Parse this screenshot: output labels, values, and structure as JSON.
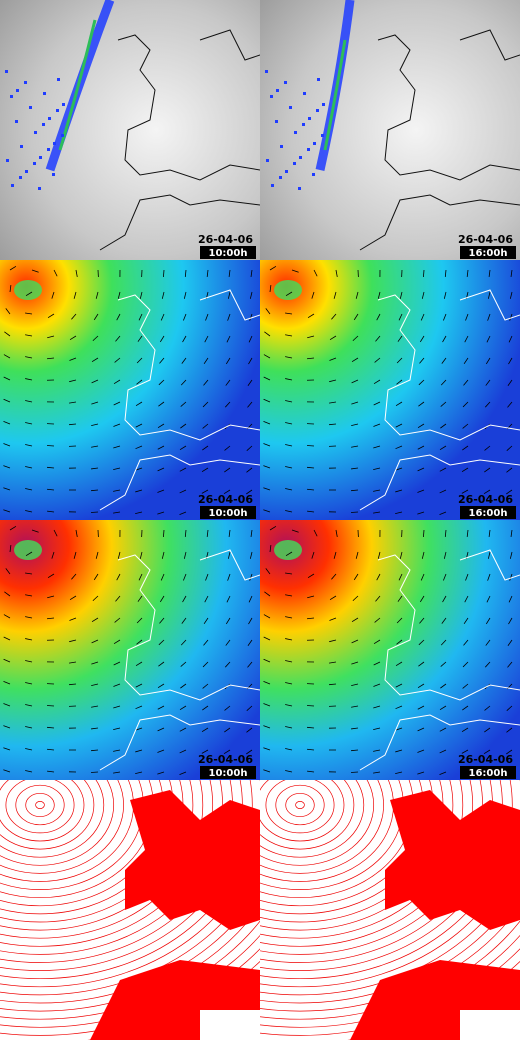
{
  "panels": [
    {
      "date": "26-04-06",
      "time": "10:00h"
    },
    {
      "date": "26-04-06",
      "time": "16:00h"
    },
    {
      "date": "26-04-06",
      "time": "10:00h"
    },
    {
      "date": "26-04-06",
      "time": "16:00h"
    },
    {
      "date": "26-04-06",
      "time": "10:00h"
    },
    {
      "date": "26-04-06",
      "time": "16:00h"
    }
  ]
}
